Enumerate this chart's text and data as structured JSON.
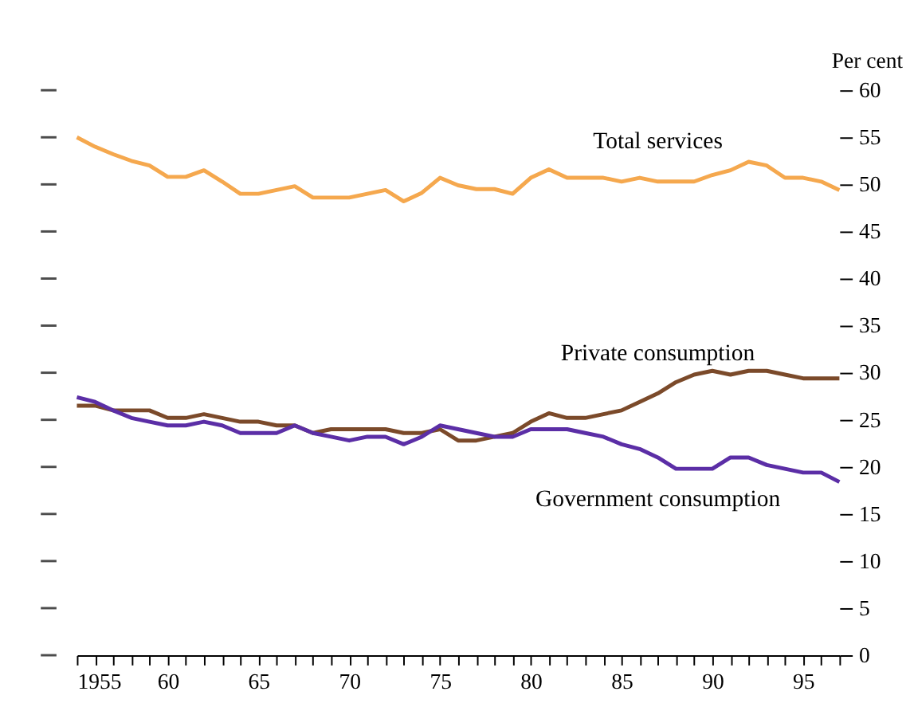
{
  "chart_data": {
    "type": "line",
    "ylabel": "Per cent",
    "x": [
      1955,
      1956,
      1957,
      1958,
      1959,
      1960,
      1961,
      1962,
      1963,
      1964,
      1965,
      1966,
      1967,
      1968,
      1969,
      1970,
      1971,
      1972,
      1973,
      1974,
      1975,
      1976,
      1977,
      1978,
      1979,
      1980,
      1981,
      1982,
      1983,
      1984,
      1985,
      1986,
      1987,
      1988,
      1989,
      1990,
      1991,
      1992,
      1993,
      1994,
      1995,
      1996,
      1997
    ],
    "series": [
      {
        "name": "Total services",
        "color": "#f5a84e",
        "values": [
          55,
          54,
          53.2,
          52.5,
          52,
          50.8,
          50.8,
          51.5,
          50.3,
          49,
          49,
          49.4,
          49.8,
          48.6,
          48.6,
          48.6,
          49,
          49.4,
          48.2,
          49.1,
          50.7,
          49.9,
          49.5,
          49.5,
          49,
          50.7,
          51.6,
          50.7,
          50.7,
          50.7,
          50.3,
          50.7,
          50.3,
          50.3,
          50.3,
          51,
          51.5,
          52.4,
          52,
          50.7,
          50.7,
          50.3,
          49.4
        ]
      },
      {
        "name": "Private consumption",
        "color": "#7b4a2a",
        "values": [
          26.5,
          26.5,
          26,
          26,
          26,
          25.2,
          25.2,
          25.6,
          25.2,
          24.8,
          24.8,
          24.4,
          24.4,
          23.6,
          24,
          24,
          24,
          24,
          23.6,
          23.6,
          24,
          22.8,
          22.8,
          23.2,
          23.6,
          24.8,
          25.7,
          25.2,
          25.2,
          25.6,
          26,
          26.9,
          27.8,
          29,
          29.8,
          30.2,
          29.8,
          30.2,
          30.2,
          29.8,
          29.4,
          29.4,
          29.4
        ]
      },
      {
        "name": "Government consumption",
        "color": "#5b2ea6",
        "values": [
          27.4,
          26.9,
          26,
          25.2,
          24.8,
          24.4,
          24.4,
          24.8,
          24.4,
          23.6,
          23.6,
          23.6,
          24.4,
          23.6,
          23.2,
          22.8,
          23.2,
          23.2,
          22.4,
          23.2,
          24.4,
          24,
          23.6,
          23.2,
          23.2,
          24,
          24,
          24,
          23.6,
          23.2,
          22.4,
          21.9,
          21,
          19.8,
          19.8,
          19.8,
          21,
          21,
          20.2,
          19.8,
          19.4,
          19.4,
          18.4
        ]
      }
    ],
    "xlim": [
      1955,
      1997
    ],
    "xticks": [
      {
        "value": 1955,
        "label": "1955"
      },
      {
        "value": 1956,
        "label": null
      },
      {
        "value": 1957,
        "label": null
      },
      {
        "value": 1958,
        "label": null
      },
      {
        "value": 1959,
        "label": null
      },
      {
        "value": 1960,
        "label": "60"
      },
      {
        "value": 1961,
        "label": null
      },
      {
        "value": 1962,
        "label": null
      },
      {
        "value": 1963,
        "label": null
      },
      {
        "value": 1964,
        "label": null
      },
      {
        "value": 1965,
        "label": "65"
      },
      {
        "value": 1966,
        "label": null
      },
      {
        "value": 1967,
        "label": null
      },
      {
        "value": 1968,
        "label": null
      },
      {
        "value": 1969,
        "label": null
      },
      {
        "value": 1970,
        "label": "70"
      },
      {
        "value": 1971,
        "label": null
      },
      {
        "value": 1972,
        "label": null
      },
      {
        "value": 1973,
        "label": null
      },
      {
        "value": 1974,
        "label": null
      },
      {
        "value": 1975,
        "label": "75"
      },
      {
        "value": 1976,
        "label": null
      },
      {
        "value": 1977,
        "label": null
      },
      {
        "value": 1978,
        "label": null
      },
      {
        "value": 1979,
        "label": null
      },
      {
        "value": 1980,
        "label": "80"
      },
      {
        "value": 1981,
        "label": null
      },
      {
        "value": 1982,
        "label": null
      },
      {
        "value": 1983,
        "label": null
      },
      {
        "value": 1984,
        "label": null
      },
      {
        "value": 1985,
        "label": "85"
      },
      {
        "value": 1986,
        "label": null
      },
      {
        "value": 1987,
        "label": null
      },
      {
        "value": 1988,
        "label": null
      },
      {
        "value": 1989,
        "label": null
      },
      {
        "value": 1990,
        "label": "90"
      },
      {
        "value": 1991,
        "label": null
      },
      {
        "value": 1992,
        "label": null
      },
      {
        "value": 1993,
        "label": null
      },
      {
        "value": 1994,
        "label": null
      },
      {
        "value": 1995,
        "label": "95"
      },
      {
        "value": 1996,
        "label": null
      },
      {
        "value": 1997,
        "label": null
      }
    ],
    "ylim": [
      0,
      60
    ],
    "yticks": [
      0,
      5,
      10,
      15,
      20,
      25,
      30,
      35,
      40,
      45,
      50,
      55,
      60
    ],
    "grid": false,
    "legend": false,
    "marker": "none",
    "line_style": "solid"
  }
}
